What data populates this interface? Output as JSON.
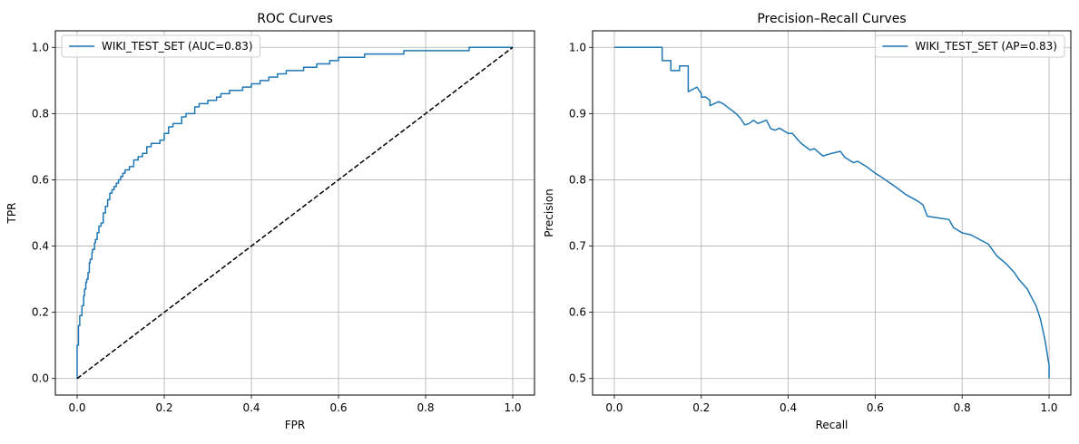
{
  "chart_data": [
    {
      "type": "line",
      "title": "ROC Curves",
      "xlabel": "FPR",
      "ylabel": "TPR",
      "xlim": [
        -0.05,
        1.05
      ],
      "ylim": [
        -0.05,
        1.05
      ],
      "xticks": [
        0.0,
        0.2,
        0.4,
        0.6,
        0.8,
        1.0
      ],
      "yticks": [
        0.0,
        0.2,
        0.4,
        0.6,
        0.8,
        1.0
      ],
      "xtick_labels": [
        "0.0",
        "0.2",
        "0.4",
        "0.6",
        "0.8",
        "1.0"
      ],
      "ytick_labels": [
        "0.0",
        "0.2",
        "0.4",
        "0.6",
        "0.8",
        "1.0"
      ],
      "grid": true,
      "legend_position": "upper-left",
      "series": [
        {
          "name": "WIKI_TEST_SET (AUC=0.83)",
          "color": "#1f77b4",
          "style": "solid",
          "x": [
            0.0,
            0.0,
            0.003,
            0.005,
            0.006,
            0.01,
            0.011,
            0.015,
            0.017,
            0.02,
            0.022,
            0.025,
            0.028,
            0.03,
            0.034,
            0.035,
            0.04,
            0.042,
            0.046,
            0.05,
            0.055,
            0.06,
            0.065,
            0.07,
            0.075,
            0.08,
            0.085,
            0.09,
            0.095,
            0.1,
            0.105,
            0.11,
            0.12,
            0.13,
            0.14,
            0.15,
            0.16,
            0.17,
            0.18,
            0.19,
            0.2,
            0.21,
            0.22,
            0.24,
            0.25,
            0.26,
            0.27,
            0.28,
            0.3,
            0.32,
            0.33,
            0.35,
            0.37,
            0.38,
            0.4,
            0.42,
            0.44,
            0.46,
            0.48,
            0.5,
            0.52,
            0.55,
            0.58,
            0.6,
            0.63,
            0.66,
            0.7,
            0.75,
            0.8,
            0.85,
            0.9,
            0.95,
            1.0
          ],
          "y": [
            0.0,
            0.1,
            0.16,
            0.16,
            0.19,
            0.19,
            0.22,
            0.25,
            0.27,
            0.29,
            0.3,
            0.32,
            0.35,
            0.36,
            0.38,
            0.39,
            0.41,
            0.42,
            0.44,
            0.46,
            0.47,
            0.5,
            0.52,
            0.54,
            0.56,
            0.57,
            0.58,
            0.59,
            0.6,
            0.61,
            0.62,
            0.63,
            0.64,
            0.66,
            0.67,
            0.68,
            0.7,
            0.71,
            0.71,
            0.72,
            0.74,
            0.76,
            0.77,
            0.79,
            0.8,
            0.8,
            0.82,
            0.83,
            0.84,
            0.85,
            0.86,
            0.87,
            0.87,
            0.88,
            0.89,
            0.9,
            0.91,
            0.92,
            0.93,
            0.93,
            0.94,
            0.95,
            0.96,
            0.97,
            0.97,
            0.98,
            0.98,
            0.99,
            0.99,
            0.99,
            1.0,
            1.0,
            1.0
          ],
          "step": "post"
        },
        {
          "name": "",
          "color": "#000000",
          "style": "dashed",
          "x": [
            0.0,
            1.0
          ],
          "y": [
            0.0,
            1.0
          ]
        }
      ],
      "legend": [
        {
          "label": "WIKI_TEST_SET (AUC=0.83)",
          "color": "#1f77b4"
        }
      ]
    },
    {
      "type": "line",
      "title": "Precision–Recall Curves",
      "xlabel": "Recall",
      "ylabel": "Precision",
      "xlim": [
        -0.05,
        1.05
      ],
      "ylim": [
        0.475,
        1.025
      ],
      "xticks": [
        0.0,
        0.2,
        0.4,
        0.6,
        0.8,
        1.0
      ],
      "yticks": [
        0.5,
        0.6,
        0.7,
        0.8,
        0.9,
        1.0
      ],
      "xtick_labels": [
        "0.0",
        "0.2",
        "0.4",
        "0.6",
        "0.8",
        "1.0"
      ],
      "ytick_labels": [
        "0.5",
        "0.6",
        "0.7",
        "0.8",
        "0.9",
        "1.0"
      ],
      "grid": true,
      "legend_position": "upper-right",
      "series": [
        {
          "name": "WIKI_TEST_SET (AP=0.83)",
          "color": "#1f77b4",
          "style": "solid",
          "x": [
            0.0,
            0.11,
            0.11,
            0.13,
            0.13,
            0.15,
            0.15,
            0.17,
            0.17,
            0.19,
            0.2,
            0.2,
            0.21,
            0.22,
            0.22,
            0.24,
            0.25,
            0.26,
            0.27,
            0.28,
            0.29,
            0.3,
            0.31,
            0.32,
            0.33,
            0.35,
            0.36,
            0.37,
            0.38,
            0.4,
            0.41,
            0.42,
            0.43,
            0.44,
            0.45,
            0.46,
            0.48,
            0.5,
            0.52,
            0.53,
            0.55,
            0.56,
            0.58,
            0.6,
            0.61,
            0.63,
            0.65,
            0.67,
            0.7,
            0.71,
            0.72,
            0.75,
            0.77,
            0.78,
            0.8,
            0.82,
            0.84,
            0.86,
            0.88,
            0.9,
            0.92,
            0.93,
            0.95,
            0.96,
            0.97,
            0.98,
            0.99,
            1.0,
            1.0
          ],
          "y": [
            1.0,
            1.0,
            0.98,
            0.98,
            0.965,
            0.965,
            0.972,
            0.972,
            0.933,
            0.94,
            0.93,
            0.925,
            0.925,
            0.92,
            0.912,
            0.918,
            0.915,
            0.91,
            0.905,
            0.9,
            0.893,
            0.883,
            0.885,
            0.89,
            0.885,
            0.89,
            0.877,
            0.875,
            0.878,
            0.87,
            0.87,
            0.862,
            0.855,
            0.85,
            0.845,
            0.847,
            0.836,
            0.84,
            0.843,
            0.834,
            0.826,
            0.828,
            0.82,
            0.81,
            0.806,
            0.797,
            0.788,
            0.778,
            0.767,
            0.762,
            0.745,
            0.742,
            0.74,
            0.728,
            0.72,
            0.717,
            0.71,
            0.703,
            0.685,
            0.674,
            0.66,
            0.65,
            0.635,
            0.622,
            0.61,
            0.59,
            0.56,
            0.52,
            0.5
          ]
        }
      ],
      "legend": [
        {
          "label": "WIKI_TEST_SET (AP=0.83)",
          "color": "#1f77b4"
        }
      ]
    }
  ]
}
